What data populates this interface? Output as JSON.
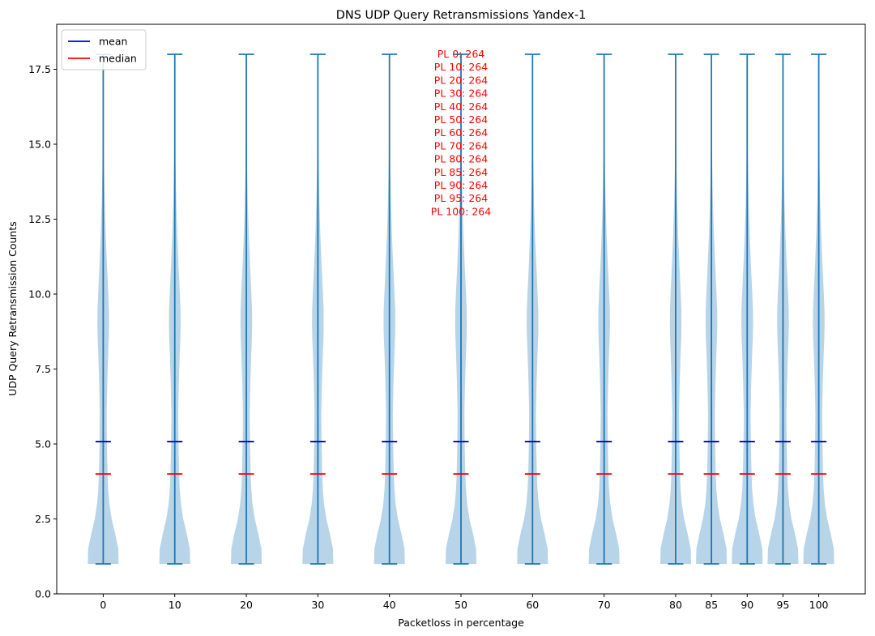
{
  "chart_data": {
    "type": "violin",
    "title": "DNS UDP Query Retransmissions Yandex-1",
    "xlabel": "Packetloss in percentage",
    "ylabel": "UDP Query Retransmission Counts",
    "ylim": [
      0,
      19
    ],
    "yticks": [
      0.0,
      2.5,
      5.0,
      7.5,
      10.0,
      12.5,
      15.0,
      17.5
    ],
    "yticklabels": [
      "0.0",
      "2.5",
      "5.0",
      "7.5",
      "10.0",
      "12.5",
      "15.0",
      "17.5"
    ],
    "xlim": [
      -6.5,
      106.5
    ],
    "categories": [
      0,
      10,
      20,
      30,
      40,
      50,
      60,
      70,
      80,
      85,
      90,
      95,
      100
    ],
    "categorylabels": [
      "0",
      "10",
      "20",
      "30",
      "40",
      "50",
      "60",
      "70",
      "80",
      "85",
      "90",
      "95",
      "100"
    ],
    "min": [
      1,
      1,
      1,
      1,
      1,
      1,
      1,
      1,
      1,
      1,
      1,
      1,
      1
    ],
    "max": [
      18,
      18,
      18,
      18,
      18,
      18,
      18,
      18,
      18,
      18,
      18,
      18,
      18
    ],
    "mean": [
      5.08,
      5.08,
      5.08,
      5.08,
      5.08,
      5.08,
      5.08,
      5.08,
      5.08,
      5.08,
      5.08,
      5.08,
      5.08
    ],
    "median": [
      4,
      4,
      4,
      4,
      4,
      4,
      4,
      4,
      4,
      4,
      4,
      4,
      4
    ],
    "density_profile": {
      "y": [
        1.0,
        1.5,
        2.0,
        2.5,
        3.0,
        3.5,
        4.0,
        5.0,
        6.0,
        7.0,
        8.0,
        8.5,
        9.0,
        9.5,
        10.0,
        11.0,
        12.0,
        13.0,
        14.0,
        15.0,
        16.0,
        17.0,
        18.0
      ],
      "width": [
        1.0,
        0.98,
        0.78,
        0.55,
        0.4,
        0.32,
        0.28,
        0.24,
        0.22,
        0.26,
        0.32,
        0.36,
        0.38,
        0.37,
        0.33,
        0.24,
        0.16,
        0.1,
        0.06,
        0.03,
        0.015,
        0.008,
        0.004
      ]
    },
    "legend": [
      {
        "label": "mean",
        "color": "#0000cc"
      },
      {
        "label": "median",
        "color": "#ff0000"
      }
    ],
    "legend_position": "top-left",
    "annotations": [
      "PL 0: 264",
      "PL 10: 264",
      "PL 20: 264",
      "PL 30: 264",
      "PL 40: 264",
      "PL 50: 264",
      "PL 60: 264",
      "PL 70: 264",
      "PL 80: 264",
      "PL 85: 264",
      "PL 90: 264",
      "PL 95: 264",
      "PL 100: 264"
    ],
    "colors": {
      "violin_fill": "#b7d4e8",
      "lines": "#1f77b4",
      "mean": "#0000cc",
      "median": "#ff0000",
      "annotation": "#ff0000"
    }
  }
}
